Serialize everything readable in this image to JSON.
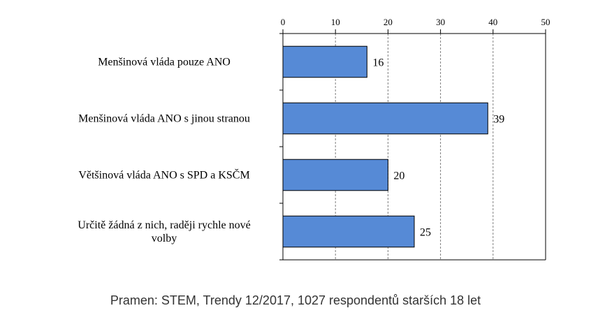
{
  "chart_data": {
    "type": "bar",
    "orientation": "horizontal",
    "categories": [
      [
        "Menšinová vláda pouze ANO"
      ],
      [
        "Menšinová vláda ANO s jinou stranou"
      ],
      [
        "Většinová vláda ANO s SPD a KSČM"
      ],
      [
        "Určitě žádná z nich, raději rychle nové",
        "volby"
      ]
    ],
    "values": [
      16,
      39,
      20,
      25
    ],
    "xlim": [
      0,
      50
    ],
    "xticks": [
      "0",
      "10",
      "20",
      "30",
      "40",
      "50"
    ],
    "axis_position": "top",
    "grid": "vertical dashed",
    "bar_color": "#568ad6",
    "bar_border": "#000000"
  },
  "source": "Pramen: STEM, Trendy 12/2017, 1027 respondentů starších 18 let"
}
